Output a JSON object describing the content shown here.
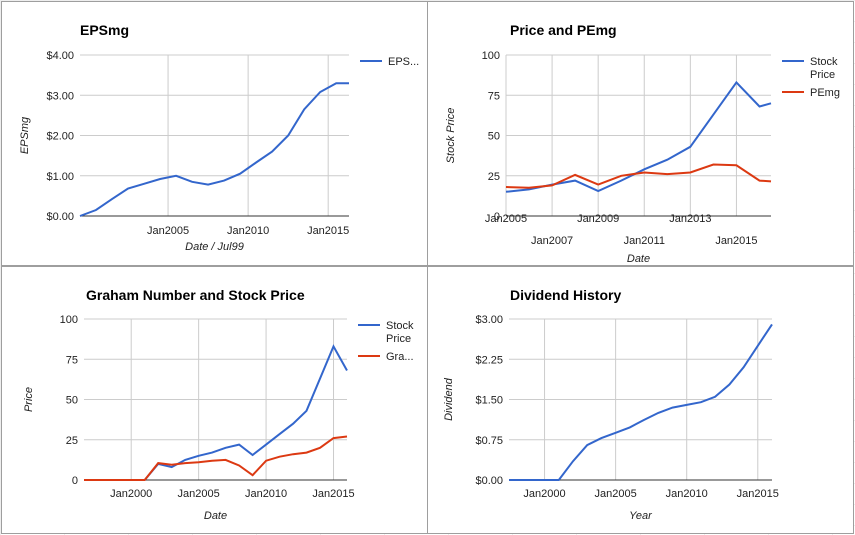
{
  "chart_data": [
    {
      "type": "line",
      "title": "EPSmg",
      "xlabel": "Date / Jul99",
      "ylabel": "EPSmg",
      "xlim": [
        1999.5,
        2016.3
      ],
      "ylim": [
        0,
        4
      ],
      "x_ticks": [
        {
          "v": 2005,
          "label": "Jan2005"
        },
        {
          "v": 2010,
          "label": "Jan2010"
        },
        {
          "v": 2015,
          "label": "Jan2015"
        }
      ],
      "y_ticks": [
        {
          "v": 0,
          "label": "$0.00"
        },
        {
          "v": 1,
          "label": "$1.00"
        },
        {
          "v": 2,
          "label": "$2.00"
        },
        {
          "v": 3,
          "label": "$3.00"
        },
        {
          "v": 4,
          "label": "$4.00"
        }
      ],
      "grid": true,
      "legend": "right",
      "series": [
        {
          "name": "EPS...",
          "color": "#3366cc",
          "x": [
            1999.5,
            2000.5,
            2001.5,
            2002.5,
            2003.5,
            2004.5,
            2005.5,
            2006.5,
            2007.5,
            2008.5,
            2009.5,
            2010.5,
            2011.5,
            2012.5,
            2013.5,
            2014.5,
            2015.5,
            2016.3
          ],
          "values": [
            0.0,
            0.15,
            0.42,
            0.68,
            0.8,
            0.92,
            1.0,
            0.85,
            0.78,
            0.88,
            1.05,
            1.33,
            1.6,
            2.0,
            2.65,
            3.08,
            3.3,
            3.3
          ]
        }
      ]
    },
    {
      "type": "line",
      "title": "Price and PEmg",
      "xlabel": "Date",
      "ylabel": "Stock Price",
      "xlim": [
        2005,
        2016.5
      ],
      "ylim": [
        0,
        100
      ],
      "x_ticks": [
        {
          "v": 2005,
          "label": "Jan2005",
          "row": 0
        },
        {
          "v": 2007,
          "label": "Jan2007",
          "row": 1
        },
        {
          "v": 2009,
          "label": "Jan2009",
          "row": 0
        },
        {
          "v": 2011,
          "label": "Jan2011",
          "row": 1
        },
        {
          "v": 2013,
          "label": "Jan2013",
          "row": 0
        },
        {
          "v": 2015,
          "label": "Jan2015",
          "row": 1
        }
      ],
      "y_ticks": [
        {
          "v": 0,
          "label": "0"
        },
        {
          "v": 25,
          "label": "25"
        },
        {
          "v": 50,
          "label": "50"
        },
        {
          "v": 75,
          "label": "75"
        },
        {
          "v": 100,
          "label": "100"
        }
      ],
      "grid": true,
      "legend": "right",
      "series": [
        {
          "name": "Stock Price",
          "color": "#3366cc",
          "x": [
            2005,
            2006,
            2007,
            2008,
            2009,
            2010,
            2011,
            2012,
            2013,
            2014,
            2015,
            2016,
            2016.5
          ],
          "values": [
            15,
            16.5,
            19.5,
            22,
            15.5,
            22,
            29,
            35,
            43,
            63,
            83,
            68,
            70
          ]
        },
        {
          "name": "PEmg",
          "color": "#dc3912",
          "x": [
            2005,
            2006,
            2007,
            2008,
            2009,
            2010,
            2011,
            2012,
            2013,
            2014,
            2015,
            2016,
            2016.5
          ],
          "values": [
            18,
            17.5,
            19,
            25.5,
            19.5,
            25,
            27,
            26,
            27,
            32,
            31.5,
            22,
            21.5
          ]
        }
      ]
    },
    {
      "type": "line",
      "title": "Graham Number and Stock Price",
      "xlabel": "Date",
      "ylabel": "Price",
      "xlim": [
        1996.5,
        2016.0
      ],
      "ylim": [
        0,
        100
      ],
      "x_ticks": [
        {
          "v": 2000,
          "label": "Jan2000"
        },
        {
          "v": 2005,
          "label": "Jan2005"
        },
        {
          "v": 2010,
          "label": "Jan2010"
        },
        {
          "v": 2015,
          "label": "Jan2015"
        }
      ],
      "y_ticks": [
        {
          "v": 0,
          "label": "0"
        },
        {
          "v": 25,
          "label": "25"
        },
        {
          "v": 50,
          "label": "50"
        },
        {
          "v": 75,
          "label": "75"
        },
        {
          "v": 100,
          "label": "100"
        }
      ],
      "grid": true,
      "legend": "right",
      "series": [
        {
          "name": "Stock Price",
          "color": "#3366cc",
          "x": [
            1996.5,
            2001,
            2002,
            2003,
            2004,
            2005,
            2006,
            2007,
            2008,
            2009,
            2010,
            2011,
            2012,
            2013,
            2014,
            2015,
            2016
          ],
          "values": [
            0,
            0,
            10,
            8,
            12.5,
            15,
            17,
            20,
            22,
            15.5,
            22,
            28.5,
            35,
            43,
            63,
            83,
            68
          ]
        },
        {
          "name": "Gra...",
          "color": "#dc3912",
          "x": [
            1996.5,
            2001,
            2002,
            2003,
            2004,
            2005,
            2006,
            2007,
            2008,
            2009,
            2010,
            2011,
            2012,
            2013,
            2014,
            2015,
            2016
          ],
          "values": [
            0,
            0,
            10.5,
            9.5,
            10.5,
            11,
            12,
            12.5,
            9,
            3,
            12,
            14.5,
            16,
            17,
            20,
            26,
            27
          ]
        }
      ]
    },
    {
      "type": "line",
      "title": "Dividend History",
      "xlabel": "Year",
      "ylabel": "Dividend",
      "xlim": [
        1997.5,
        2016.0
      ],
      "ylim": [
        0,
        3
      ],
      "x_ticks": [
        {
          "v": 2000,
          "label": "Jan2000"
        },
        {
          "v": 2005,
          "label": "Jan2005"
        },
        {
          "v": 2010,
          "label": "Jan2010"
        },
        {
          "v": 2015,
          "label": "Jan2015"
        }
      ],
      "y_ticks": [
        {
          "v": 0,
          "label": "$0.00"
        },
        {
          "v": 0.75,
          "label": "$0.75"
        },
        {
          "v": 1.5,
          "label": "$1.50"
        },
        {
          "v": 2.25,
          "label": "$2.25"
        },
        {
          "v": 3,
          "label": "$3.00"
        }
      ],
      "grid": true,
      "legend": "none",
      "series": [
        {
          "color": "#3366cc",
          "x": [
            1997.5,
            2001,
            2002,
            2003,
            2004,
            2005,
            2006,
            2007,
            2008,
            2009,
            2010,
            2011,
            2012,
            2013,
            2014,
            2015,
            2016
          ],
          "values": [
            0,
            0,
            0.35,
            0.65,
            0.78,
            0.88,
            0.98,
            1.12,
            1.25,
            1.35,
            1.4,
            1.45,
            1.55,
            1.78,
            2.1,
            2.5,
            2.9
          ]
        }
      ]
    }
  ]
}
